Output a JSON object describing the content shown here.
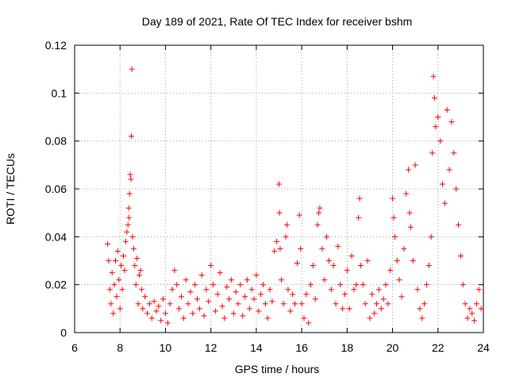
{
  "chart_data": {
    "type": "scatter",
    "title": "Day 189 of 2021, Rate Of TEC Index for receiver bshm",
    "xlabel": "GPS time / hours",
    "ylabel": "ROTI / TECUs",
    "xlim": [
      6,
      24
    ],
    "ylim": [
      0,
      0.12
    ],
    "x_ticks": [
      6,
      8,
      10,
      12,
      14,
      16,
      18,
      20,
      22,
      24
    ],
    "x_tick_labels": [
      "6",
      "8",
      "10",
      "12",
      "14",
      "16",
      "18",
      "20",
      "22",
      "24"
    ],
    "y_ticks": [
      0,
      0.02,
      0.04,
      0.06,
      0.08,
      0.1,
      0.12
    ],
    "y_tick_labels": [
      "0",
      "0.02",
      "0.04",
      "0.06",
      "0.08",
      "0.1",
      "0.12"
    ],
    "grid": true,
    "marker": "+",
    "color": "#ff0000",
    "series": [
      {
        "name": "ROTI",
        "points": [
          [
            7.45,
            0.037
          ],
          [
            7.5,
            0.03
          ],
          [
            7.55,
            0.018
          ],
          [
            7.6,
            0.012
          ],
          [
            7.65,
            0.025
          ],
          [
            7.7,
            0.008
          ],
          [
            7.75,
            0.02
          ],
          [
            7.8,
            0.03
          ],
          [
            7.85,
            0.015
          ],
          [
            7.9,
            0.034
          ],
          [
            7.95,
            0.022
          ],
          [
            8.0,
            0.01
          ],
          [
            8.05,
            0.028
          ],
          [
            8.1,
            0.018
          ],
          [
            8.15,
            0.032
          ],
          [
            8.2,
            0.026
          ],
          [
            8.25,
            0.038
          ],
          [
            8.3,
            0.042
          ],
          [
            8.35,
            0.045
          ],
          [
            8.38,
            0.052
          ],
          [
            8.4,
            0.048
          ],
          [
            8.42,
            0.058
          ],
          [
            8.45,
            0.066
          ],
          [
            8.48,
            0.064
          ],
          [
            8.5,
            0.082
          ],
          [
            8.52,
            0.11
          ],
          [
            8.55,
            0.04
          ],
          [
            8.6,
            0.035
          ],
          [
            8.65,
            0.028
          ],
          [
            8.7,
            0.02
          ],
          [
            8.75,
            0.031
          ],
          [
            8.8,
            0.012
          ],
          [
            8.85,
            0.024
          ],
          [
            8.9,
            0.026
          ],
          [
            8.95,
            0.018
          ],
          [
            9.0,
            0.01
          ],
          [
            9.1,
            0.015
          ],
          [
            9.2,
            0.008
          ],
          [
            9.3,
            0.012
          ],
          [
            9.4,
            0.006
          ],
          [
            9.5,
            0.013
          ],
          [
            9.6,
            0.009
          ],
          [
            9.7,
            0.011
          ],
          [
            9.8,
            0.005
          ],
          [
            9.9,
            0.014
          ],
          [
            10.0,
            0.008
          ],
          [
            10.1,
            0.004
          ],
          [
            10.2,
            0.012
          ],
          [
            10.3,
            0.018
          ],
          [
            10.4,
            0.026
          ],
          [
            10.5,
            0.02
          ],
          [
            10.6,
            0.01
          ],
          [
            10.7,
            0.015
          ],
          [
            10.8,
            0.006
          ],
          [
            10.9,
            0.022
          ],
          [
            11.0,
            0.012
          ],
          [
            11.1,
            0.017
          ],
          [
            11.2,
            0.008
          ],
          [
            11.3,
            0.02
          ],
          [
            11.4,
            0.014
          ],
          [
            11.5,
            0.01
          ],
          [
            11.6,
            0.024
          ],
          [
            11.7,
            0.007
          ],
          [
            11.8,
            0.018
          ],
          [
            11.9,
            0.013
          ],
          [
            12.0,
            0.028
          ],
          [
            12.1,
            0.02
          ],
          [
            12.2,
            0.009
          ],
          [
            12.3,
            0.016
          ],
          [
            12.4,
            0.025
          ],
          [
            12.5,
            0.011
          ],
          [
            12.6,
            0.006
          ],
          [
            12.7,
            0.019
          ],
          [
            12.8,
            0.014
          ],
          [
            12.9,
            0.022
          ],
          [
            13.0,
            0.008
          ],
          [
            13.1,
            0.017
          ],
          [
            13.2,
            0.012
          ],
          [
            13.3,
            0.02
          ],
          [
            13.4,
            0.007
          ],
          [
            13.5,
            0.015
          ],
          [
            13.6,
            0.022
          ],
          [
            13.7,
            0.01
          ],
          [
            13.8,
            0.018
          ],
          [
            13.9,
            0.014
          ],
          [
            14.0,
            0.024
          ],
          [
            14.1,
            0.009
          ],
          [
            14.2,
            0.016
          ],
          [
            14.3,
            0.02
          ],
          [
            14.4,
            0.012
          ],
          [
            14.5,
            0.006
          ],
          [
            14.6,
            0.018
          ],
          [
            14.7,
            0.013
          ],
          [
            14.8,
            0.034
          ],
          [
            14.9,
            0.038
          ],
          [
            15.0,
            0.062
          ],
          [
            15.02,
            0.05
          ],
          [
            15.05,
            0.035
          ],
          [
            15.1,
            0.022
          ],
          [
            15.2,
            0.012
          ],
          [
            15.3,
            0.04
          ],
          [
            15.35,
            0.045
          ],
          [
            15.4,
            0.018
          ],
          [
            15.5,
            0.009
          ],
          [
            15.6,
            0.016
          ],
          [
            15.7,
            0.012
          ],
          [
            15.8,
            0.029
          ],
          [
            15.9,
            0.049
          ],
          [
            15.95,
            0.035
          ],
          [
            16.0,
            0.012
          ],
          [
            16.1,
            0.006
          ],
          [
            16.2,
            0.016
          ],
          [
            16.3,
            0.004
          ],
          [
            16.4,
            0.02
          ],
          [
            16.5,
            0.028
          ],
          [
            16.6,
            0.014
          ],
          [
            16.7,
            0.045
          ],
          [
            16.75,
            0.05
          ],
          [
            16.8,
            0.052
          ],
          [
            16.9,
            0.035
          ],
          [
            17.0,
            0.022
          ],
          [
            17.1,
            0.04
          ],
          [
            17.2,
            0.03
          ],
          [
            17.3,
            0.018
          ],
          [
            17.4,
            0.028
          ],
          [
            17.5,
            0.012
          ],
          [
            17.6,
            0.036
          ],
          [
            17.7,
            0.02
          ],
          [
            17.8,
            0.01
          ],
          [
            17.9,
            0.016
          ],
          [
            18.0,
            0.026
          ],
          [
            18.1,
            0.01
          ],
          [
            18.2,
            0.032
          ],
          [
            18.3,
            0.018
          ],
          [
            18.4,
            0.02
          ],
          [
            18.5,
            0.048
          ],
          [
            18.55,
            0.056
          ],
          [
            18.6,
            0.028
          ],
          [
            18.7,
            0.02
          ],
          [
            18.8,
            0.012
          ],
          [
            18.9,
            0.03
          ],
          [
            19.0,
            0.006
          ],
          [
            19.1,
            0.016
          ],
          [
            19.2,
            0.008
          ],
          [
            19.3,
            0.012
          ],
          [
            19.4,
            0.018
          ],
          [
            19.5,
            0.01
          ],
          [
            19.6,
            0.014
          ],
          [
            19.7,
            0.02
          ],
          [
            19.8,
            0.012
          ],
          [
            19.9,
            0.026
          ],
          [
            20.0,
            0.056
          ],
          [
            20.05,
            0.048
          ],
          [
            20.1,
            0.04
          ],
          [
            20.2,
            0.03
          ],
          [
            20.3,
            0.022
          ],
          [
            20.4,
            0.015
          ],
          [
            20.5,
            0.035
          ],
          [
            20.6,
            0.058
          ],
          [
            20.7,
            0.068
          ],
          [
            20.75,
            0.05
          ],
          [
            20.8,
            0.044
          ],
          [
            20.9,
            0.03
          ],
          [
            21.0,
            0.07
          ],
          [
            21.1,
            0.018
          ],
          [
            21.2,
            0.01
          ],
          [
            21.3,
            0.006
          ],
          [
            21.4,
            0.012
          ],
          [
            21.5,
            0.02
          ],
          [
            21.6,
            0.028
          ],
          [
            21.7,
            0.04
          ],
          [
            21.75,
            0.075
          ],
          [
            21.8,
            0.107
          ],
          [
            21.85,
            0.098
          ],
          [
            21.9,
            0.086
          ],
          [
            22.0,
            0.09
          ],
          [
            22.1,
            0.08
          ],
          [
            22.2,
            0.062
          ],
          [
            22.3,
            0.054
          ],
          [
            22.4,
            0.093
          ],
          [
            22.5,
            0.068
          ],
          [
            22.6,
            0.088
          ],
          [
            22.7,
            0.075
          ],
          [
            22.8,
            0.06
          ],
          [
            22.9,
            0.045
          ],
          [
            23.0,
            0.032
          ],
          [
            23.1,
            0.02
          ],
          [
            23.2,
            0.012
          ],
          [
            23.3,
            0.006
          ],
          [
            23.4,
            0.01
          ],
          [
            23.5,
            0.008
          ],
          [
            23.6,
            0.005
          ],
          [
            23.7,
            0.012
          ],
          [
            23.8,
            0.018
          ],
          [
            23.9,
            0.01
          ]
        ]
      }
    ]
  }
}
